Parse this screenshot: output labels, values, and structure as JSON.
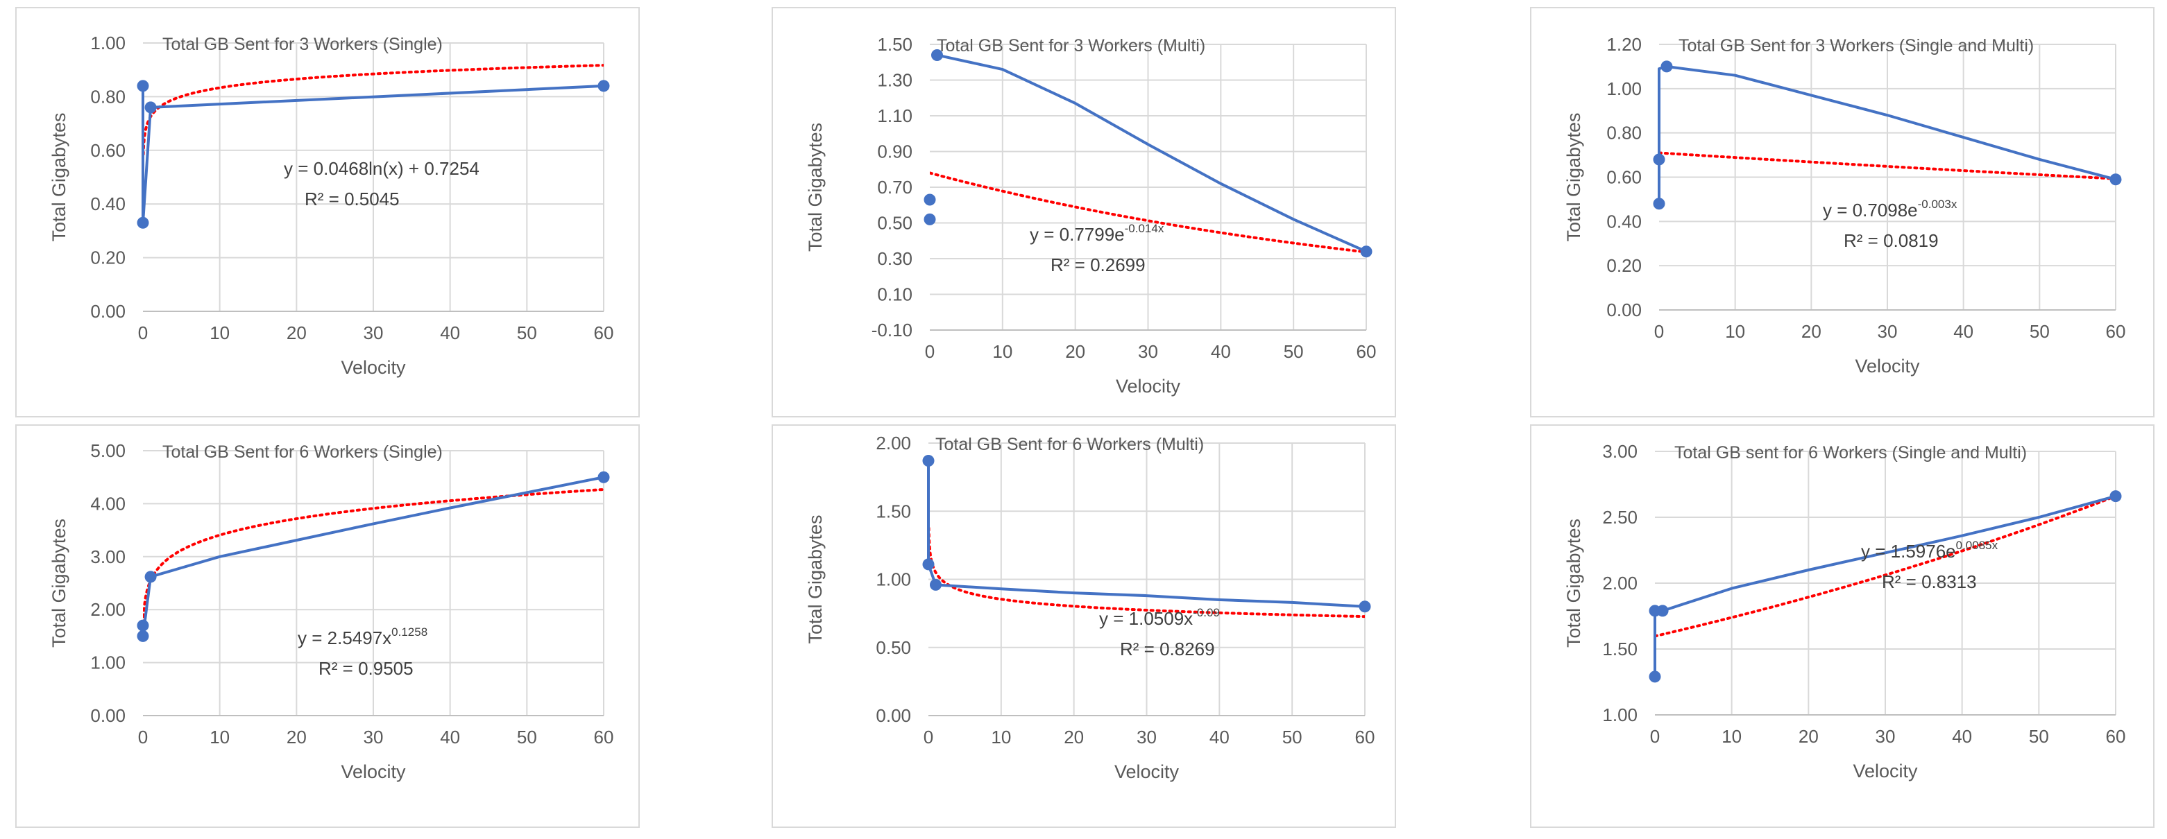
{
  "chart_data": [
    {
      "type": "scatter",
      "title": "Total GB Sent for 3 Workers (Single)",
      "xlabel": "Velocity",
      "ylabel": "Total Gigabytes",
      "xlim": [
        0,
        60
      ],
      "ylim": [
        0,
        1
      ],
      "xticks": [
        0,
        10,
        20,
        30,
        40,
        50,
        60
      ],
      "yticks": [
        0,
        0.2,
        0.4,
        0.6,
        0.8,
        1.0
      ],
      "ytick_labels": [
        "0.00",
        "0.20",
        "0.40",
        "0.60",
        "0.80",
        "1.00"
      ],
      "xtick_labels": [
        "0",
        "10",
        "20",
        "30",
        "40",
        "50",
        "60"
      ],
      "series": [
        {
          "name": "Total GB",
          "points": [
            [
              0,
              0.84
            ],
            [
              0,
              0.33
            ],
            [
              1,
              0.76
            ],
            [
              60,
              0.84
            ]
          ]
        }
      ],
      "line_path": [
        [
          0,
          0.84
        ],
        [
          0,
          0.33
        ],
        [
          1,
          0.76
        ],
        [
          60,
          0.84
        ]
      ],
      "trendline": {
        "type": "log",
        "a": 0.0468,
        "b": 0.7254
      },
      "equation": {
        "main": "y = 0.0468ln(x) + 0.7254",
        "sup": "",
        "r2": "R² = 0.5045"
      }
    },
    {
      "type": "scatter",
      "title": "Total GB Sent for 3 Workers (Multi)",
      "xlabel": "Velocity",
      "ylabel": "Total Gigabytes",
      "xlim": [
        0,
        60
      ],
      "ylim": [
        -0.1,
        1.5
      ],
      "xticks": [
        0,
        10,
        20,
        30,
        40,
        50,
        60
      ],
      "yticks": [
        -0.1,
        0.1,
        0.3,
        0.5,
        0.7,
        0.9,
        1.1,
        1.3,
        1.5
      ],
      "ytick_labels": [
        "-0.10",
        "0.10",
        "0.30",
        "0.50",
        "0.70",
        "0.90",
        "1.10",
        "1.30",
        "1.50"
      ],
      "xtick_labels": [
        "0",
        "10",
        "20",
        "30",
        "40",
        "50",
        "60"
      ],
      "series": [
        {
          "name": "Total GB",
          "points": [
            [
              0,
              0.63
            ],
            [
              0,
              0.52
            ],
            [
              1,
              1.44
            ],
            [
              60,
              0.34
            ]
          ]
        }
      ],
      "line_path": [
        [
          1,
          1.44
        ],
        [
          10,
          1.36
        ],
        [
          20,
          1.17
        ],
        [
          30,
          0.94
        ],
        [
          40,
          0.72
        ],
        [
          50,
          0.52
        ],
        [
          60,
          0.34
        ]
      ],
      "trendline": {
        "type": "exp",
        "a": 0.7799,
        "b": -0.014
      },
      "equation": {
        "main": "y = 0.7799e",
        "sup": "-0.014x",
        "r2": "R² = 0.2699"
      }
    },
    {
      "type": "scatter",
      "title": "Total GB Sent for 3 Workers (Single and Multi)",
      "xlabel": "Velocity",
      "ylabel": "Total Gigabytes",
      "xlim": [
        0,
        60
      ],
      "ylim": [
        0,
        1.2
      ],
      "xticks": [
        0,
        10,
        20,
        30,
        40,
        50,
        60
      ],
      "yticks": [
        0,
        0.2,
        0.4,
        0.6,
        0.8,
        1.0,
        1.2
      ],
      "ytick_labels": [
        "0.00",
        "0.20",
        "0.40",
        "0.60",
        "0.80",
        "1.00",
        "1.20"
      ],
      "xtick_labels": [
        "0",
        "10",
        "20",
        "30",
        "40",
        "50",
        "60"
      ],
      "series": [
        {
          "name": "Total GB",
          "points": [
            [
              0,
              0.68
            ],
            [
              0,
              0.48
            ],
            [
              1,
              1.1
            ],
            [
              60,
              0.59
            ]
          ]
        }
      ],
      "line_path": [
        [
          0,
          0.68
        ],
        [
          0,
          0.48
        ],
        [
          0,
          1.09
        ],
        [
          1,
          1.1
        ],
        [
          10,
          1.06
        ],
        [
          20,
          0.97
        ],
        [
          30,
          0.88
        ],
        [
          40,
          0.78
        ],
        [
          50,
          0.68
        ],
        [
          60,
          0.59
        ]
      ],
      "trendline": {
        "type": "exp",
        "a": 0.7098,
        "b": -0.003
      },
      "equation": {
        "main": "y = 0.7098e",
        "sup": "-0.003x",
        "r2": "R² = 0.0819"
      }
    },
    {
      "type": "scatter",
      "title": "Total GB Sent for 6 Workers (Single)",
      "xlabel": "Velocity",
      "ylabel": "Total Gigabytes",
      "xlim": [
        0,
        60
      ],
      "ylim": [
        0,
        5
      ],
      "xticks": [
        0,
        10,
        20,
        30,
        40,
        50,
        60
      ],
      "yticks": [
        0,
        1,
        2,
        3,
        4,
        5
      ],
      "ytick_labels": [
        "0.00",
        "1.00",
        "2.00",
        "3.00",
        "4.00",
        "5.00"
      ],
      "xtick_labels": [
        "0",
        "10",
        "20",
        "30",
        "40",
        "50",
        "60"
      ],
      "series": [
        {
          "name": "Total GB",
          "points": [
            [
              0,
              1.7
            ],
            [
              0,
              1.5
            ],
            [
              1,
              2.62
            ],
            [
              60,
              4.5
            ]
          ]
        }
      ],
      "line_path": [
        [
          0,
          1.7
        ],
        [
          0,
          1.5
        ],
        [
          1,
          2.62
        ],
        [
          10,
          3.0
        ],
        [
          20,
          3.31
        ],
        [
          30,
          3.62
        ],
        [
          40,
          3.92
        ],
        [
          50,
          4.21
        ],
        [
          60,
          4.5
        ]
      ],
      "trendline": {
        "type": "power",
        "a": 2.5497,
        "b": 0.1258
      },
      "equation": {
        "main": "y = 2.5497x",
        "sup": "0.1258",
        "r2": "R² = 0.9505"
      }
    },
    {
      "type": "scatter",
      "title": "Total GB Sent for 6 Workers (Multi)",
      "xlabel": "Velocity",
      "ylabel": "Total Gigabytes",
      "xlim": [
        0,
        60
      ],
      "ylim": [
        0,
        2
      ],
      "xticks": [
        0,
        10,
        20,
        30,
        40,
        50,
        60
      ],
      "yticks": [
        0,
        0.5,
        1.0,
        1.5,
        2.0
      ],
      "ytick_labels": [
        "0.00",
        "0.50",
        "1.00",
        "1.50",
        "2.00"
      ],
      "xtick_labels": [
        "0",
        "10",
        "20",
        "30",
        "40",
        "50",
        "60"
      ],
      "series": [
        {
          "name": "Total GB",
          "points": [
            [
              0,
              1.87
            ],
            [
              0,
              1.11
            ],
            [
              1,
              0.96
            ],
            [
              60,
              0.8
            ]
          ]
        }
      ],
      "line_path": [
        [
          0,
          1.87
        ],
        [
          0,
          1.11
        ],
        [
          1,
          0.96
        ],
        [
          10,
          0.93
        ],
        [
          20,
          0.9
        ],
        [
          30,
          0.88
        ],
        [
          40,
          0.85
        ],
        [
          50,
          0.83
        ],
        [
          60,
          0.8
        ]
      ],
      "trendline": {
        "type": "power",
        "a": 1.0509,
        "b": -0.09
      },
      "equation": {
        "main": "y = 1.0509x",
        "sup": "-0.09",
        "r2": "R² = 0.8269"
      }
    },
    {
      "type": "scatter",
      "title": "Total GB sent for 6 Workers (Single and Multi)",
      "xlabel": "Velocity",
      "ylabel": "Total Gigabytes",
      "xlim": [
        0,
        60
      ],
      "ylim": [
        1,
        3
      ],
      "xticks": [
        0,
        10,
        20,
        30,
        40,
        50,
        60
      ],
      "yticks": [
        1,
        1.5,
        2,
        2.5,
        3
      ],
      "ytick_labels": [
        "1.00",
        "1.50",
        "2.00",
        "2.50",
        "3.00"
      ],
      "xtick_labels": [
        "0",
        "10",
        "20",
        "30",
        "40",
        "50",
        "60"
      ],
      "series": [
        {
          "name": "Total GB",
          "points": [
            [
              0,
              1.79
            ],
            [
              0,
              1.29
            ],
            [
              1,
              1.79
            ],
            [
              60,
              2.66
            ]
          ]
        }
      ],
      "line_path": [
        [
          0,
          1.79
        ],
        [
          0,
          1.29
        ],
        [
          0,
          1.79
        ],
        [
          1,
          1.79
        ],
        [
          10,
          1.96
        ],
        [
          20,
          2.1
        ],
        [
          30,
          2.23
        ],
        [
          40,
          2.36
        ],
        [
          50,
          2.5
        ],
        [
          60,
          2.66
        ]
      ],
      "trendline": {
        "type": "exp",
        "a": 1.5976,
        "b": 0.0085
      },
      "equation": {
        "main": "y = 1.5976e",
        "sup": "0.0085x",
        "r2": "R² = 0.8313"
      }
    }
  ]
}
